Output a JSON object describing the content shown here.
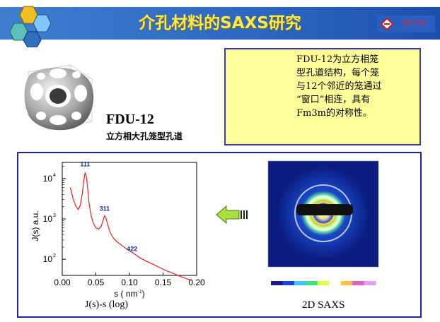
{
  "header": {
    "title": "介孔材料的SAXS研究",
    "logo_text": "ICC CAS"
  },
  "structure": {
    "name": "FDU-12",
    "subtitle": "立方相大孔笼型孔道"
  },
  "note": {
    "lines": [
      "FDU-12为立方相笼",
      "型孔道结构，每个笼",
      "与12个邻近的笼通过",
      "“窗口”相连，具有",
      "Fm3m的对称性。"
    ]
  },
  "chart_data": {
    "type": "line",
    "xlabel": "s ( nm",
    "xlabel_exp": "-1",
    "xlabel_close": ")",
    "ylabel": "J(s) a.u.",
    "x_ticks": [
      "0.00",
      "0.05",
      "0.10",
      "0.15",
      "0.20"
    ],
    "y_ticks": [
      "10",
      "10",
      "10"
    ],
    "y_tick_exps": [
      "4",
      "3",
      "2"
    ],
    "xlim": [
      0.0,
      0.2
    ],
    "ylim_log": [
      1.6,
      4.4
    ],
    "y_scale": "log",
    "annotations": [
      {
        "text": "111",
        "x": 0.034,
        "y": 20000
      },
      {
        "text": "311",
        "x": 0.063,
        "y": 1600
      },
      {
        "text": "422",
        "x": 0.104,
        "y": 160
      }
    ],
    "series": [
      {
        "color": "#e8201a",
        "x": [
          0.012,
          0.016,
          0.02,
          0.024,
          0.027,
          0.03,
          0.032,
          0.034,
          0.036,
          0.038,
          0.04,
          0.043,
          0.046,
          0.05,
          0.054,
          0.058,
          0.061,
          0.063,
          0.065,
          0.068,
          0.072,
          0.077,
          0.083,
          0.09,
          0.098,
          0.106,
          0.115,
          0.125,
          0.135,
          0.145,
          0.155,
          0.165,
          0.175,
          0.185,
          0.192
        ],
        "y": [
          6000,
          3200,
          2100,
          1700,
          2200,
          4500,
          9000,
          14000,
          11000,
          5200,
          2400,
          1200,
          800,
          600,
          560,
          660,
          950,
          1200,
          1050,
          680,
          430,
          320,
          260,
          210,
          170,
          140,
          110,
          90,
          75,
          62,
          52,
          45,
          38,
          33,
          30
        ]
      }
    ],
    "caption": "J(s)-s (log)"
  },
  "saxs": {
    "caption": "2D SAXS",
    "colorbar": [
      "#1a1a8c",
      "#2040e0",
      "#40c0ff",
      "#40e080",
      "#e0ff40",
      "#ffffff",
      "#ffc040",
      "#e060c0",
      "#e0a0ff"
    ]
  }
}
